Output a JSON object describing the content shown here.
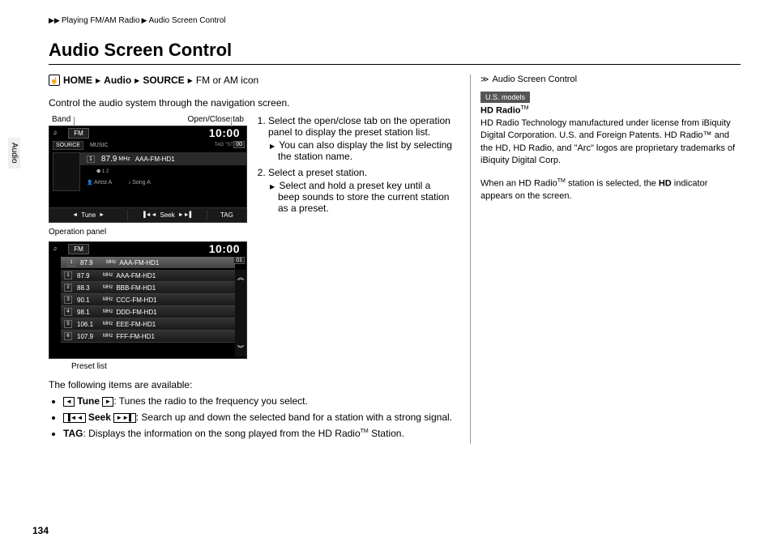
{
  "breadcrumb": {
    "a": "Playing FM/AM Radio",
    "b": "Audio Screen Control"
  },
  "title": "Audio Screen Control",
  "nav": {
    "home": "HOME",
    "audio": "Audio",
    "source": "SOURCE",
    "tail": "FM or AM icon"
  },
  "intro": "Control the audio system through the navigation screen.",
  "labels": {
    "band": "Band",
    "openclose": "Open/Close tab",
    "oppanel": "Operation panel",
    "preset": "Preset list"
  },
  "screen1": {
    "band": "FM",
    "clock": "10:00",
    "source": "SOURCE",
    "music": "MUSIC",
    "tag": "TAG \"ST\"",
    "freq": "87.9",
    "mhz": "MHz",
    "station": "AAA-FM-HD1",
    "hd": "1 2",
    "artist": "Artist A",
    "song": "Song A",
    "radio": "",
    "tune": "Tune",
    "seek": "Seek",
    "tagbtn": "TAG",
    "side": "00"
  },
  "screen2": {
    "band": "FM",
    "clock": "10:00",
    "hdr_freq": "87.9",
    "hdr_mhz": "MHz",
    "hdr_name": "AAA-FM-HD1",
    "side": "01",
    "rows": [
      {
        "n": "1",
        "f": "87.9",
        "u": "MHz",
        "name": "AAA-FM-HD1"
      },
      {
        "n": "2",
        "f": "88.3",
        "u": "MHz",
        "name": "BBB-FM-HD1"
      },
      {
        "n": "3",
        "f": "90.1",
        "u": "MHz",
        "name": "CCC-FM-HD1"
      },
      {
        "n": "4",
        "f": "98.1",
        "u": "MHz",
        "name": "DDD-FM-HD1"
      },
      {
        "n": "5",
        "f": "106.1",
        "u": "MHz",
        "name": "EEE-FM-HD1"
      },
      {
        "n": "6",
        "f": "107.9",
        "u": "MHz",
        "name": "FFF-FM-HD1"
      }
    ]
  },
  "steps": {
    "s1": "Select the open/close tab on the operation panel to display the preset station list.",
    "s1a": "You can also display the list by selecting the station name.",
    "s2": "Select a preset station.",
    "s2a": "Select and hold a preset key until a beep sounds to store the current station as a preset."
  },
  "avail": {
    "hdr": "The following items are available:",
    "tune_l": "Tune",
    "tune_t": ": Tunes the radio to the frequency you select.",
    "seek_l": "Seek",
    "seek_t": ": Search up and down the selected band for a station with a strong signal.",
    "tag_l": "TAG",
    "tag_t1": ": Displays the information on the song played from the HD Radio",
    "tag_t2": " Station."
  },
  "right": {
    "hdr": "Audio Screen Control",
    "us": "U.S. models",
    "hd": "HD Radio",
    "p1": "HD Radio Technology manufactured under license from iBiquity Digital Corporation. U.S. and Foreign Patents. HD Radio™ and the HD, HD Radio, and \"Arc\" logos are proprietary trademarks of iBiquity Digital Corp.",
    "p2a": "When an HD Radio",
    "p2b": " station is selected, the ",
    "p2c": "HD",
    "p2d": " indicator appears on the screen."
  },
  "sideTab": "Audio",
  "pageNum": "134"
}
